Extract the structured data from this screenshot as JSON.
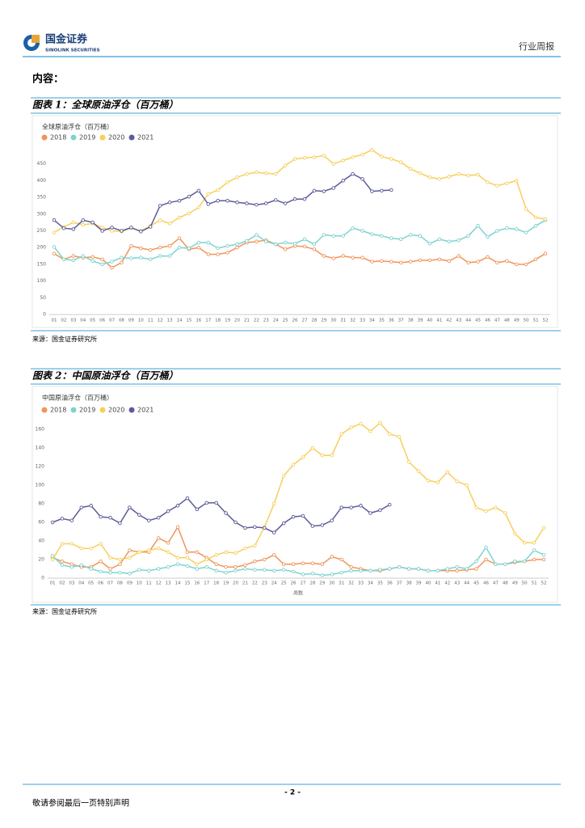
{
  "header": {
    "company_cn": "国金证券",
    "company_en": "SINOLINK SECURITIES",
    "report_type": "行业周报"
  },
  "content_heading": "内容：",
  "figures": [
    {
      "caption": "图表 1：全球原油浮仓（百万桶）",
      "source": "来源：国金证券研究所"
    },
    {
      "caption": "图表 2：中国原油浮仓（百万桶）",
      "source": "来源：国金证券研究所"
    }
  ],
  "chart_data": [
    {
      "type": "line",
      "title": "全球原油浮仓（百万桶）",
      "categories": [
        "01",
        "02",
        "03",
        "04",
        "05",
        "06",
        "07",
        "08",
        "09",
        "10",
        "11",
        "12",
        "13",
        "14",
        "15",
        "16",
        "17",
        "18",
        "19",
        "20",
        "21",
        "22",
        "23",
        "24",
        "25",
        "26",
        "27",
        "28",
        "29",
        "30",
        "31",
        "32",
        "33",
        "34",
        "35",
        "36",
        "37",
        "38",
        "39",
        "40",
        "41",
        "42",
        "43",
        "44",
        "45",
        "46",
        "47",
        "48",
        "49",
        "50",
        "51",
        "52"
      ],
      "ylim": [
        0,
        500
      ],
      "yticks": [
        0,
        50,
        100,
        150,
        200,
        250,
        300,
        350,
        400,
        450
      ],
      "grid": false,
      "legend": "top-left",
      "series": [
        {
          "name": "2018",
          "color": "#f0955a",
          "values": [
            182,
            165,
            175,
            170,
            172,
            165,
            140,
            155,
            205,
            198,
            193,
            200,
            205,
            228,
            195,
            200,
            180,
            180,
            185,
            200,
            215,
            218,
            222,
            210,
            195,
            205,
            203,
            195,
            175,
            168,
            175,
            170,
            170,
            158,
            160,
            158,
            155,
            158,
            162,
            162,
            165,
            160,
            175,
            155,
            158,
            172,
            155,
            160,
            150,
            150,
            165,
            182
          ]
        },
        {
          "name": "2019",
          "color": "#7dd3d0",
          "values": [
            202,
            165,
            162,
            175,
            160,
            150,
            158,
            170,
            168,
            170,
            165,
            175,
            175,
            200,
            198,
            215,
            215,
            198,
            205,
            210,
            220,
            238,
            218,
            210,
            215,
            212,
            225,
            210,
            238,
            235,
            235,
            258,
            250,
            240,
            235,
            228,
            225,
            238,
            235,
            212,
            225,
            218,
            222,
            235,
            265,
            232,
            250,
            258,
            255,
            245,
            265,
            282
          ]
        },
        {
          "name": "2020",
          "color": "#f7cf5c",
          "values": [
            245,
            262,
            275,
            268,
            272,
            260,
            250,
            248,
            258,
            250,
            265,
            282,
            272,
            290,
            302,
            320,
            360,
            372,
            395,
            410,
            420,
            425,
            422,
            420,
            445,
            465,
            468,
            470,
            475,
            450,
            460,
            470,
            478,
            492,
            472,
            465,
            455,
            435,
            422,
            410,
            405,
            412,
            420,
            415,
            418,
            395,
            385,
            392,
            400,
            315,
            290,
            285
          ]
        },
        {
          "name": "2021",
          "color": "#5b5b9b",
          "values": [
            282,
            258,
            255,
            282,
            275,
            250,
            260,
            250,
            260,
            248,
            262,
            325,
            335,
            340,
            352,
            370,
            330,
            340,
            340,
            335,
            332,
            328,
            332,
            342,
            332,
            345,
            345,
            370,
            368,
            378,
            400,
            420,
            405,
            368,
            370,
            372,
            null,
            null,
            null,
            null,
            null,
            null,
            null,
            null,
            null,
            null,
            null,
            null,
            null,
            null,
            null,
            null
          ]
        }
      ]
    },
    {
      "type": "line",
      "title": "中国原油浮仓（百万桶）",
      "x_label": "周数",
      "categories": [
        "01",
        "02",
        "03",
        "04",
        "05",
        "06",
        "07",
        "08",
        "09",
        "10",
        "11",
        "12",
        "13",
        "14",
        "15",
        "16",
        "17",
        "18",
        "19",
        "20",
        "21",
        "22",
        "23",
        "24",
        "25",
        "26",
        "27",
        "28",
        "29",
        "30",
        "31",
        "32",
        "33",
        "34",
        "35",
        "36",
        "37",
        "38",
        "39",
        "40",
        "41",
        "42",
        "43",
        "44",
        "45",
        "46",
        "47",
        "48",
        "49",
        "50",
        "51",
        "52"
      ],
      "ylim": [
        0,
        180
      ],
      "yticks": [
        0,
        20,
        40,
        60,
        80,
        100,
        120,
        140,
        160
      ],
      "grid": false,
      "legend": "top-left",
      "series": [
        {
          "name": "2018",
          "color": "#f0955a",
          "values": [
            22,
            18,
            15,
            12,
            12,
            18,
            10,
            15,
            30,
            28,
            28,
            43,
            38,
            55,
            28,
            28,
            22,
            15,
            12,
            12,
            14,
            18,
            20,
            25,
            15,
            15,
            16,
            16,
            15,
            23,
            20,
            12,
            10,
            8,
            8,
            10,
            12,
            10,
            10,
            8,
            8,
            8,
            8,
            9,
            10,
            20,
            15,
            15,
            17,
            18,
            20,
            20
          ]
        },
        {
          "name": "2019",
          "color": "#7dd3d0",
          "values": [
            24,
            14,
            12,
            14,
            10,
            7,
            6,
            6,
            5,
            9,
            8,
            10,
            12,
            15,
            13,
            10,
            12,
            8,
            6,
            8,
            10,
            9,
            9,
            8,
            9,
            7,
            4,
            5,
            3,
            4,
            6,
            8,
            8,
            8,
            9,
            10,
            12,
            10,
            10,
            8,
            8,
            10,
            12,
            10,
            18,
            33,
            15,
            15,
            18,
            18,
            30,
            25
          ]
        },
        {
          "name": "2020",
          "color": "#f7cf5c",
          "values": [
            20,
            37,
            37,
            32,
            32,
            37,
            22,
            20,
            22,
            28,
            30,
            32,
            28,
            22,
            22,
            15,
            20,
            25,
            28,
            27,
            32,
            35,
            55,
            80,
            110,
            122,
            130,
            140,
            132,
            132,
            155,
            162,
            166,
            158,
            167,
            155,
            152,
            125,
            115,
            105,
            103,
            114,
            104,
            100,
            76,
            72,
            76,
            70,
            48,
            38,
            38,
            54
          ]
        },
        {
          "name": "2021",
          "color": "#5b5b9b",
          "values": [
            60,
            64,
            62,
            76,
            78,
            66,
            65,
            59,
            76,
            68,
            62,
            65,
            72,
            78,
            86,
            74,
            81,
            81,
            70,
            60,
            54,
            55,
            54,
            49,
            59,
            66,
            67,
            56,
            57,
            62,
            76,
            76,
            78,
            70,
            73,
            79,
            null,
            null,
            null,
            null,
            null,
            null,
            null,
            null,
            null,
            null,
            null,
            null,
            null,
            null,
            null,
            null
          ]
        }
      ]
    }
  ],
  "footer": {
    "page_number": "- 2 -",
    "disclaimer": "敬请参阅最后一页特别声明"
  }
}
